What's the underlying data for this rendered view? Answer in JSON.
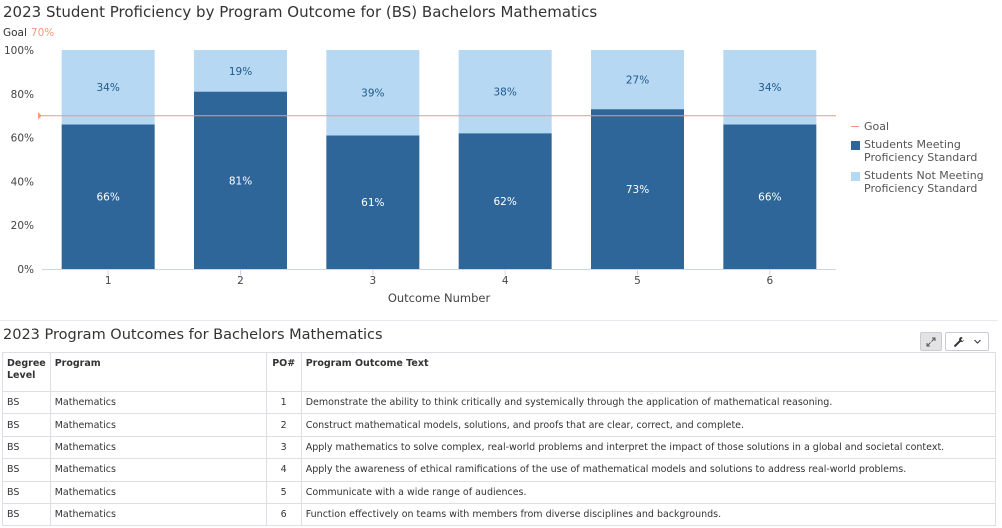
{
  "chart_data": {
    "type": "bar",
    "stacked": true,
    "title": "2023 Student Proficiency by Program Outcome for (BS) Bachelors Mathematics",
    "goal_label": "Goal",
    "goal_value_label": "70%",
    "goal": 70,
    "xlabel": "Outcome Number",
    "ylabel": "",
    "ylim": [
      0,
      100
    ],
    "yticks": [
      "0%",
      "20%",
      "40%",
      "60%",
      "80%",
      "100%"
    ],
    "categories": [
      "1",
      "2",
      "3",
      "4",
      "5",
      "6"
    ],
    "series": [
      {
        "name": "Students Meeting Proficiency Standard",
        "color": "#2e6699",
        "values": [
          66,
          81,
          61,
          62,
          73,
          66
        ],
        "labels": [
          "66%",
          "81%",
          "61%",
          "62%",
          "73%",
          "66%"
        ]
      },
      {
        "name": "Students Not Meeting Proficiency Standard",
        "color": "#b7d8f2",
        "values": [
          34,
          19,
          39,
          38,
          27,
          34
        ],
        "labels": [
          "34%",
          "19%",
          "39%",
          "38%",
          "27%",
          "34%"
        ]
      }
    ],
    "legend": {
      "position": "right",
      "goal": "Goal",
      "goal_color": "#f0997b",
      "items": [
        "Students Meeting Proficiency Standard",
        "Students Not Meeting Proficiency Standard"
      ]
    },
    "grid": false
  },
  "table": {
    "title": "2023 Program Outcomes for Bachelors Mathematics",
    "headers": [
      "Degree Level",
      "Program",
      "PO#",
      "Program Outcome Text"
    ],
    "rows": [
      [
        "BS",
        "Mathematics",
        "1",
        "Demonstrate the ability to think critically and systemically through the application of mathematical reasoning."
      ],
      [
        "BS",
        "Mathematics",
        "2",
        "Construct mathematical models, solutions, and proofs that are clear, correct, and complete."
      ],
      [
        "BS",
        "Mathematics",
        "3",
        "Apply mathematics to solve complex, real-world problems and interpret the impact of those solutions in a global and societal context."
      ],
      [
        "BS",
        "Mathematics",
        "4",
        "Apply the awareness of ethical ramifications of the use of mathematical models and solutions to address real-world problems."
      ],
      [
        "BS",
        "Mathematics",
        "5",
        "Communicate with a wide range of audiences."
      ],
      [
        "BS",
        "Mathematics",
        "6",
        "Function effectively on teams with members from diverse disciplines and backgrounds."
      ]
    ]
  },
  "toolbar": {
    "expand_icon": "expand-icon",
    "tools_icon": "wrench-icon",
    "dropdown_icon": "chevron-down-icon"
  }
}
